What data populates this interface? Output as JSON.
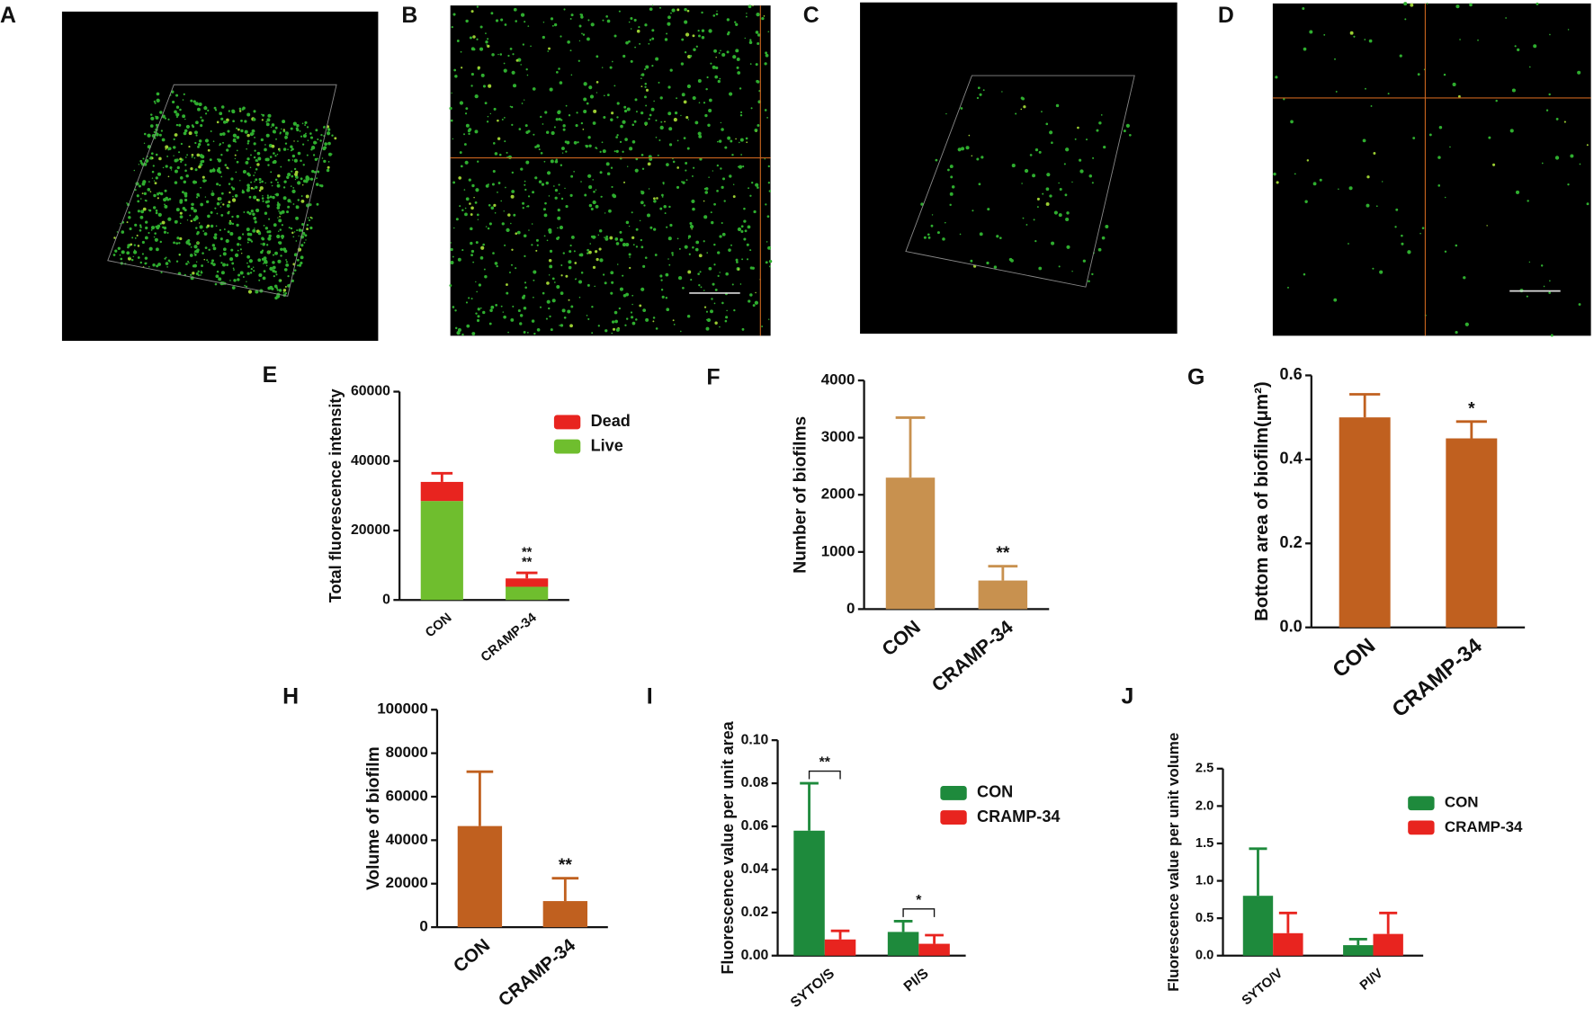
{
  "images": [
    {
      "label": "A"
    },
    {
      "label": "B"
    },
    {
      "label": "C"
    },
    {
      "label": "D"
    }
  ],
  "chart_data": [
    {
      "type": "stacked-bar",
      "panel": "E",
      "ylabel": "Total fluorescence intensity",
      "categories": [
        "CON",
        "CRAMP-34"
      ],
      "series": [
        {
          "name": "Live",
          "color": "#6fbe2e",
          "values": [
            28500,
            3800
          ]
        },
        {
          "name": "Dead",
          "color": "#e8241f",
          "values": [
            5500,
            2400
          ],
          "errors": [
            2500,
            1600
          ]
        }
      ],
      "annotations": [
        {
          "text": "**",
          "color": "#e8241f"
        },
        {
          "text": "**",
          "color": "#6fbe2e"
        }
      ],
      "ylim": [
        0,
        60000
      ],
      "yticks": [
        0,
        20000,
        40000,
        60000
      ]
    },
    {
      "type": "bar",
      "panel": "F",
      "ylabel": "Number of biofilms",
      "categories": [
        "CON",
        "CRAMP-34"
      ],
      "values": [
        2300,
        500
      ],
      "errors": [
        1050,
        250
      ],
      "color": "#c8914f",
      "annotations": [
        "**"
      ],
      "ylim": [
        0,
        4000
      ],
      "yticks": [
        0,
        1000,
        2000,
        3000,
        4000
      ]
    },
    {
      "type": "bar",
      "panel": "G",
      "ylabel": "Bottom area of biofilm(μm²)",
      "categories": [
        "CON",
        "CRAMP-34"
      ],
      "values": [
        0.5,
        0.45
      ],
      "errors": [
        0.055,
        0.04
      ],
      "color": "#c0601f",
      "annotations": [
        "*"
      ],
      "ylim": [
        0,
        0.6
      ],
      "yticks": [
        {
          "value": 0,
          "label": "0.0"
        },
        0.2,
        0.4,
        0.6
      ]
    },
    {
      "type": "bar",
      "panel": "H",
      "ylabel": "Volume of biofilm",
      "categories": [
        "CON",
        "CRAMP-34"
      ],
      "values": [
        46500,
        12000
      ],
      "errors": [
        25000,
        10500
      ],
      "color": "#c0601f",
      "annotations": [
        "**"
      ],
      "ylim": [
        0,
        100000
      ],
      "yticks": [
        0,
        20000,
        40000,
        60000,
        80000,
        100000
      ]
    },
    {
      "type": "grouped-bar",
      "panel": "I",
      "ylabel": "Fluorescence value per unit area",
      "categories": [
        "SYTO/S",
        "PI/S"
      ],
      "series": [
        {
          "name": "CON",
          "color": "#1e8a3c",
          "values": [
            0.058,
            0.011
          ],
          "errors": [
            0.022,
            0.005
          ]
        },
        {
          "name": "CRAMP-34",
          "color": "#e8241f",
          "values": [
            0.0075,
            0.0055
          ],
          "errors": [
            0.004,
            0.004
          ]
        }
      ],
      "annotations": [
        "**",
        "*"
      ],
      "ylim": [
        0,
        0.1
      ],
      "yticks": [
        {
          "value": 0,
          "label": "0.00"
        },
        0.02,
        0.04,
        0.06,
        0.08,
        {
          "value": 0.1,
          "label": "0.10"
        }
      ]
    },
    {
      "type": "grouped-bar",
      "panel": "J",
      "ylabel": "Fluorescence value per unit volume",
      "categories": [
        "SYTO/V",
        "PI/V"
      ],
      "series": [
        {
          "name": "CON",
          "color": "#1e8a3c",
          "values": [
            0.8,
            0.14
          ],
          "errors": [
            0.63,
            0.08
          ]
        },
        {
          "name": "CRAMP-34",
          "color": "#e8241f",
          "values": [
            0.3,
            0.29
          ],
          "errors": [
            0.27,
            0.28
          ]
        }
      ],
      "ylim": [
        0,
        2.5
      ],
      "yticks": [
        {
          "value": 0,
          "label": "0.0"
        },
        0.5,
        {
          "value": 1,
          "label": "1.0"
        },
        1.5,
        {
          "value": 2,
          "label": "2.0"
        },
        2.5
      ]
    }
  ]
}
